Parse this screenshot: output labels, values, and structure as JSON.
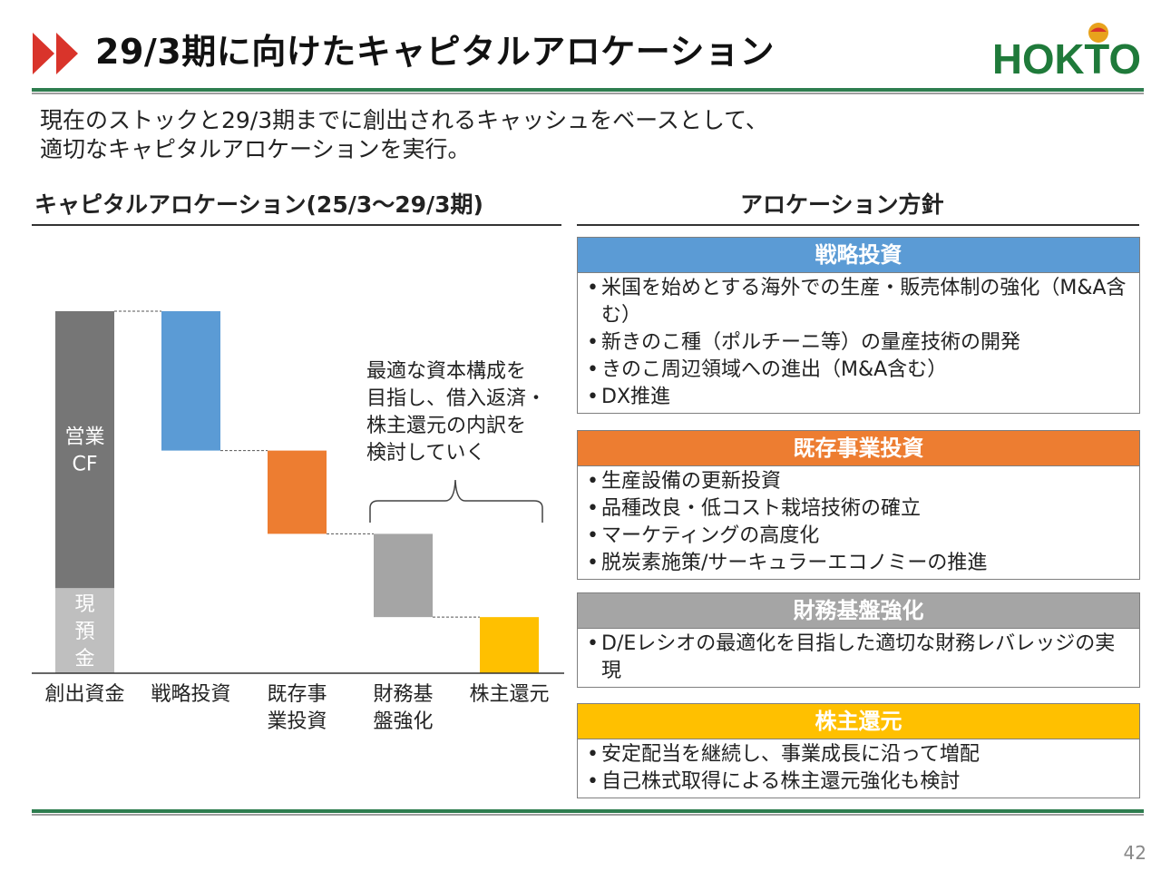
{
  "page": {
    "title": "29/3期に向けたキャピタルアロケーション",
    "logo_text": "HOKTO",
    "lead_lines": [
      "現在のストックと29/3期までに創出されるキャッシュをベースとして、",
      "適切なキャピタルアロケーションを実行。"
    ],
    "page_number": "42",
    "colors": {
      "green": "#2e7d4f",
      "red_arrow": "#d9342b",
      "blue": "#5b9bd5",
      "orange": "#ed7d31",
      "gray": "#a5a5a5",
      "gold": "#ffc000",
      "dark_gray": "#767676",
      "light_gray": "#bfbfbf"
    }
  },
  "chart_section": {
    "heading": "キャピタルアロケーション(25/3〜29/3期)",
    "note_lines": [
      "最適な資本構成を",
      "目指し、借入返済・",
      "株主還元の内訳を",
      "検討していく"
    ]
  },
  "chart_data": {
    "type": "bar",
    "subtype": "waterfall",
    "categories": [
      "創出資金",
      "戦略投資",
      "既存事業投資",
      "財務基盤強化",
      "株主還元"
    ],
    "category_labels": [
      [
        "創出資金"
      ],
      [
        "戦略投資"
      ],
      [
        "既存事",
        "業投資"
      ],
      [
        "財務基",
        "盤強化"
      ],
      [
        "株主還元"
      ]
    ],
    "total_segments": [
      {
        "label": "現預金",
        "label_chars": [
          "現",
          "預",
          "金"
        ],
        "value": 0.235,
        "color": "#bfbfbf"
      },
      {
        "label": "営業CF",
        "label_lines": [
          "営業",
          "CF"
        ],
        "value": 0.765,
        "color": "#767676"
      }
    ],
    "allocations": [
      {
        "category": "戦略投資",
        "value": 0.385,
        "color": "#5b9bd5"
      },
      {
        "category": "既存事業投資",
        "value": 0.23,
        "color": "#ed7d31"
      },
      {
        "category": "財務基盤強化",
        "value": 0.23,
        "color": "#a5a5a5"
      },
      {
        "category": "株主還元",
        "value": 0.155,
        "color": "#ffc000"
      }
    ],
    "ylim": [
      0,
      1
    ],
    "values_shown": false
  },
  "policy_section": {
    "heading": "アロケーション方針",
    "boxes": [
      {
        "title": "戦略投資",
        "color": "#5b9bd5",
        "items": [
          "米国を始めとする海外での生産・販売体制の強化（M&A含む）",
          "新きのこ種（ポルチーニ等）の量産技術の開発",
          "きのこ周辺領域への進出（M&A含む）",
          "DX推進"
        ]
      },
      {
        "title": "既存事業投資",
        "color": "#ed7d31",
        "items": [
          "生産設備の更新投資",
          "品種改良・低コスト栽培技術の確立",
          "マーケティングの高度化",
          "脱炭素施策/サーキュラーエコノミーの推進"
        ]
      },
      {
        "title": "財務基盤強化",
        "color": "#a5a5a5",
        "items": [
          "D/Eレシオの最適化を目指した適切な財務レバレッジの実現"
        ]
      },
      {
        "title": "株主還元",
        "color": "#ffc000",
        "items": [
          "安定配当を継続し、事業成長に沿って増配",
          "自己株式取得による株主還元強化も検討"
        ]
      }
    ]
  }
}
